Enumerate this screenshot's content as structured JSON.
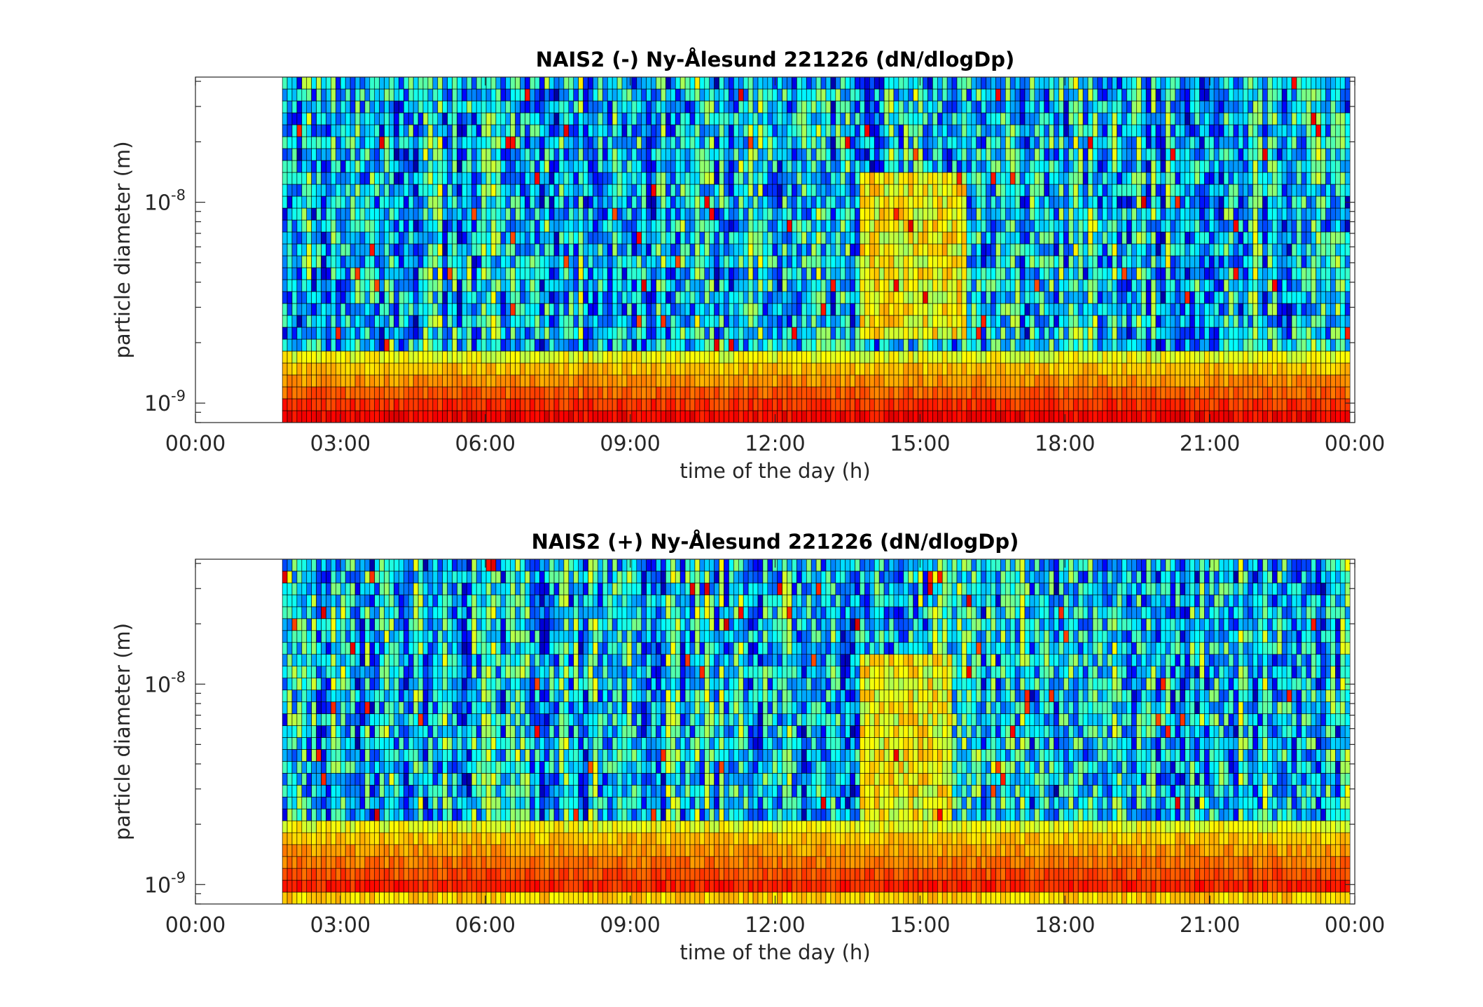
{
  "chart_data": [
    {
      "type": "heatmap",
      "title": "NAIS2 (-) Ny-Ålesund 221226 (dN/dlogDp)",
      "xlabel": "time of the day (h)",
      "ylabel": "particle diameter (m)",
      "x_range_h": [
        0,
        24
      ],
      "data_start_h": 1.8,
      "y_range_m": [
        8e-10,
        4.2e-08
      ],
      "y_scale": "log",
      "x_ticks": [
        "00:00",
        "03:00",
        "06:00",
        "09:00",
        "12:00",
        "15:00",
        "18:00",
        "21:00",
        "00:00"
      ],
      "y_ticks": [
        {
          "base": "10",
          "exp": "-9"
        },
        {
          "base": "10",
          "exp": "-8"
        }
      ],
      "colormap": "jet",
      "bins": 29,
      "features": [
        {
          "description_h": [
            13.8,
            16.0
          ],
          "dp_m": [
            2e-09,
            1.5e-08
          ],
          "level": "elevated"
        },
        {
          "description_h": [
            1.8,
            24.0
          ],
          "dp_m": [
            8e-10,
            1.5e-09
          ],
          "level": "high"
        }
      ]
    },
    {
      "type": "heatmap",
      "title": "NAIS2 (+) Ny-Ålesund 221226 (dN/dlogDp)",
      "xlabel": "time of the day (h)",
      "ylabel": "particle diameter (m)",
      "x_range_h": [
        0,
        24
      ],
      "data_start_h": 1.8,
      "y_range_m": [
        8e-10,
        4.2e-08
      ],
      "y_scale": "log",
      "x_ticks": [
        "00:00",
        "03:00",
        "06:00",
        "09:00",
        "12:00",
        "15:00",
        "18:00",
        "21:00",
        "00:00"
      ],
      "y_ticks": [
        {
          "base": "10",
          "exp": "-9"
        },
        {
          "base": "10",
          "exp": "-8"
        }
      ],
      "colormap": "jet",
      "bins": 29,
      "features": [
        {
          "description_h": [
            13.8,
            15.7
          ],
          "dp_m": [
            1.8e-09,
            1.5e-08
          ],
          "level": "elevated"
        },
        {
          "description_h": [
            1.8,
            24.0
          ],
          "dp_m": [
            8e-10,
            1.7e-09
          ],
          "level": "high"
        }
      ]
    }
  ]
}
